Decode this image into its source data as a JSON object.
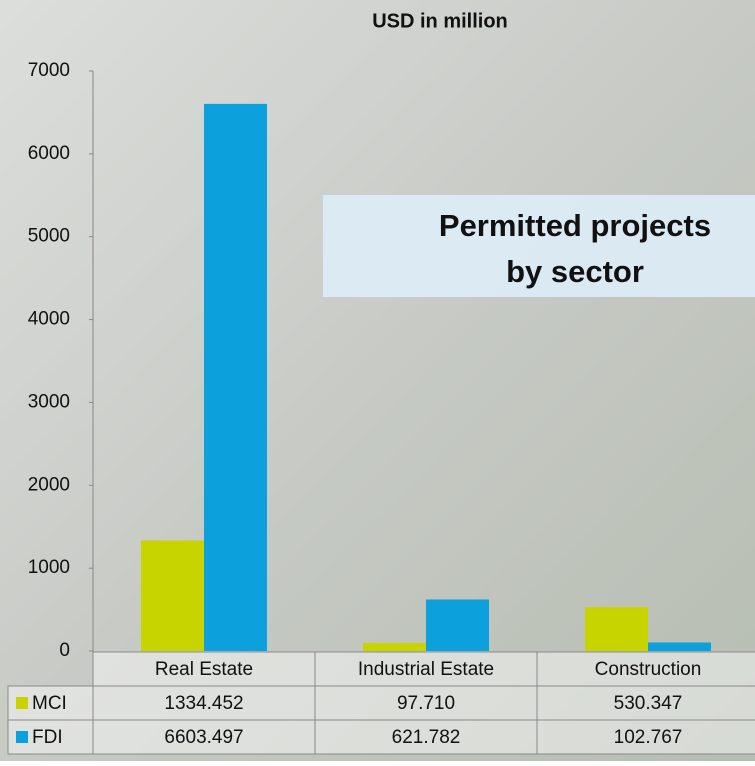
{
  "chart_data": {
    "type": "bar",
    "title": "USD in million",
    "annotation": [
      "Permitted projects",
      "by sector"
    ],
    "categories": [
      "Real Estate",
      "Industrial Estate",
      "Construction"
    ],
    "series": [
      {
        "name": "MCI",
        "color": "#c8d400",
        "values": [
          1334.452,
          97.71,
          530.347
        ],
        "value_labels": [
          "1334.452",
          "97.710",
          "530.347"
        ]
      },
      {
        "name": "FDI",
        "color": "#0ca0dc",
        "values": [
          6603.497,
          621.782,
          102.767
        ],
        "value_labels": [
          "6603.497",
          "621.782",
          "102.767"
        ]
      }
    ],
    "ylim": [
      0,
      7000
    ],
    "yticks": [
      0,
      1000,
      2000,
      3000,
      4000,
      5000,
      6000,
      7000
    ]
  }
}
